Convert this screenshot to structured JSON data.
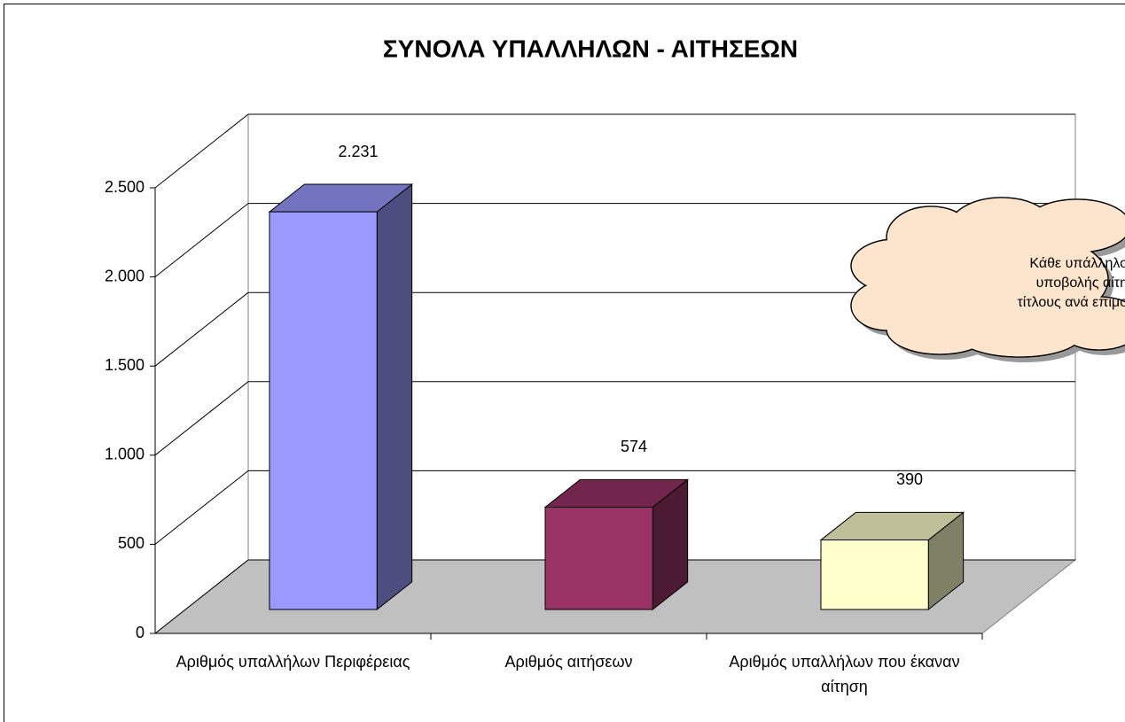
{
  "chart_data": {
    "type": "bar3d",
    "title": "ΣΥΝΟΛΑ ΥΠΑΛΛΗΛΩΝ - ΑΙΤΗΣΕΩΝ",
    "categories": [
      "Αριθμός υπαλλήλων Περιφέρειας",
      "Αριθμός αιτήσεων",
      "Αριθμός υπαλλήλων που έκαναν αίτηση"
    ],
    "values": [
      2231,
      574,
      390
    ],
    "value_labels": [
      "2.231",
      "574",
      "390"
    ],
    "colors": [
      "#9999ff",
      "#993366",
      "#ffffcc"
    ],
    "ylim": [
      0,
      2500
    ],
    "yticks": [
      0,
      500,
      {
        "value": 1000,
        "label": "1.000"
      },
      {
        "value": 1500,
        "label": "1.500"
      },
      {
        "value": 2000,
        "label": "2.000"
      },
      {
        "value": 2500,
        "label": "2.500"
      }
    ],
    "grid": true,
    "annotations": [
      "Κάθε υπάλληλο",
      "υποβολής αίτη",
      "τίτλους ανά επιμο"
    ]
  }
}
